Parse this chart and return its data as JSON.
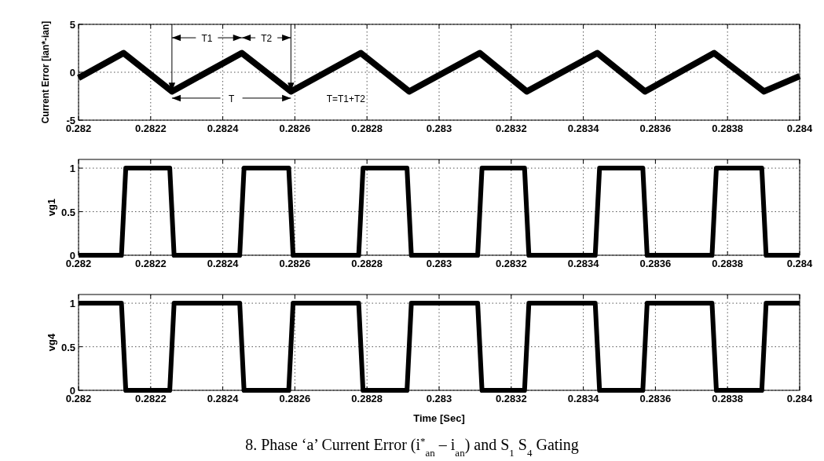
{
  "chart_data": [
    {
      "type": "line",
      "ylabel": "Current Error [ian*-ian]",
      "xlim": [
        0.282,
        0.284
      ],
      "xticks": [
        0.282,
        0.2822,
        0.2824,
        0.2826,
        0.2828,
        0.283,
        0.2832,
        0.2834,
        0.2836,
        0.2838,
        0.284
      ],
      "ylim": [
        -5,
        5
      ],
      "yticks": [
        -5,
        0,
        5
      ],
      "grid": true,
      "x": [
        0.282,
        0.282125,
        0.282259,
        0.282453,
        0.282589,
        0.282783,
        0.282917,
        0.283113,
        0.283243,
        0.283439,
        0.283571,
        0.283763,
        0.283901,
        0.284
      ],
      "series": [
        {
          "color": "#000000",
          "values": [
            -0.6,
            2,
            -2,
            2,
            -2,
            2,
            -2,
            2,
            -2,
            2,
            -2,
            2,
            -2,
            -0.4
          ]
        }
      ],
      "annotations": [
        "T1",
        "T2",
        "T",
        "T=T1+T2"
      ]
    },
    {
      "type": "line",
      "ylabel": "vg1",
      "xlim": [
        0.282,
        0.284
      ],
      "xticks": [
        0.282,
        0.2822,
        0.2824,
        0.2826,
        0.2828,
        0.283,
        0.2832,
        0.2834,
        0.2836,
        0.2838,
        0.284
      ],
      "ylim": [
        0,
        1.1
      ],
      "yticks": [
        0,
        0.5,
        1
      ],
      "grid": true,
      "x": [
        0.282,
        0.282119,
        0.282131,
        0.282253,
        0.282265,
        0.282447,
        0.282459,
        0.282583,
        0.282595,
        0.282777,
        0.282789,
        0.282911,
        0.282923,
        0.283107,
        0.283119,
        0.283237,
        0.283249,
        0.283433,
        0.283445,
        0.283565,
        0.283577,
        0.283757,
        0.283769,
        0.283895,
        0.283907,
        0.284
      ],
      "series": [
        {
          "color": "#000000",
          "values": [
            0,
            0,
            1,
            1,
            0,
            0,
            1,
            1,
            0,
            0,
            1,
            1,
            0,
            0,
            1,
            1,
            0,
            0,
            1,
            1,
            0,
            0,
            1,
            1,
            0,
            0
          ]
        }
      ]
    },
    {
      "type": "line",
      "ylabel": "vg4",
      "xlabel": "Time [Sec]",
      "xlim": [
        0.282,
        0.284
      ],
      "xticks": [
        0.282,
        0.2822,
        0.2824,
        0.2826,
        0.2828,
        0.283,
        0.2832,
        0.2834,
        0.2836,
        0.2838,
        0.284
      ],
      "ylim": [
        0,
        1.1
      ],
      "yticks": [
        0,
        0.5,
        1
      ],
      "grid": true,
      "x": [
        0.282,
        0.282119,
        0.282131,
        0.282253,
        0.282265,
        0.282447,
        0.282459,
        0.282583,
        0.282595,
        0.282777,
        0.282789,
        0.282911,
        0.282923,
        0.283107,
        0.283119,
        0.283237,
        0.283249,
        0.283433,
        0.283445,
        0.283565,
        0.283577,
        0.283757,
        0.283769,
        0.283895,
        0.283907,
        0.284
      ],
      "series": [
        {
          "color": "#000000",
          "values": [
            1,
            1,
            0,
            0,
            1,
            1,
            0,
            0,
            1,
            1,
            0,
            0,
            1,
            1,
            0,
            0,
            1,
            1,
            0,
            0,
            1,
            1,
            0,
            0,
            1,
            1
          ]
        }
      ],
      "annotations": [
        "8. Phase ‘a’ Current Error (i$^{*}$$_{an}$ – i$_{an}$) and S$_{1}$ S$_{4}$ Gating"
      ]
    }
  ]
}
